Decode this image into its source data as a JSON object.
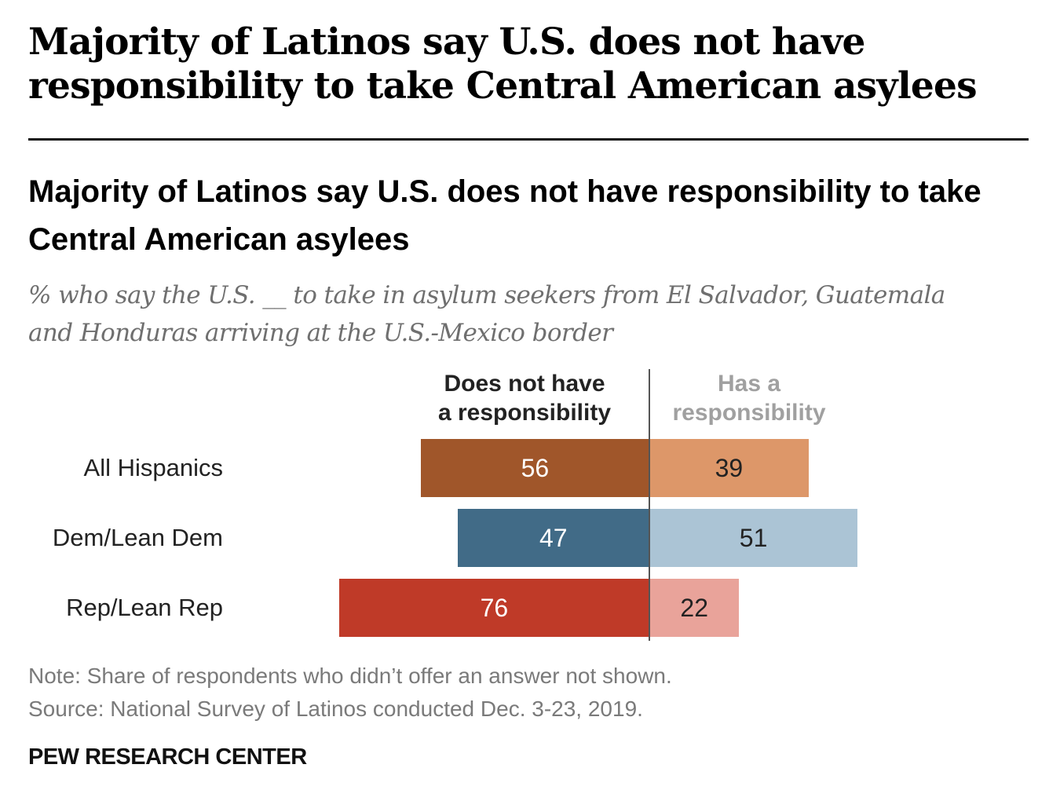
{
  "headline": "Majority of Latinos say U.S. does not have responsibility to take Central American asylees",
  "chart_data": {
    "type": "bar",
    "orientation": "horizontal-diverging",
    "title": "Majority of Latinos say U.S. does not have responsibility to take Central American asylees",
    "subtitle": "% who say the U.S. __ to take in asylum seekers from El Salvador, Guatemala and Honduras arriving at the U.S.-Mexico border",
    "categories": [
      "All Hispanics",
      "Dem/Lean Dem",
      "Rep/Lean Rep"
    ],
    "series": [
      {
        "name": "Does not have a responsibility",
        "values": [
          56,
          47,
          76
        ],
        "colors": [
          "#a0562a",
          "#416b87",
          "#bf3a28"
        ],
        "label_color": "#ffffff"
      },
      {
        "name": "Has a responsibility",
        "values": [
          39,
          51,
          22
        ],
        "colors": [
          "#dd9769",
          "#abc4d5",
          "#e9a39a"
        ],
        "label_color": "#222222"
      }
    ],
    "legend": {
      "negative_label": "Does not have\na responsibility",
      "positive_label": "Has a\nresponsibility",
      "placement": "top"
    },
    "grid": false
  },
  "note": "Note: Share of respondents who didn’t offer an answer not shown.",
  "source": "Source: National Survey of Latinos conducted Dec. 3-23, 2019.",
  "brand": "PEW RESEARCH CENTER"
}
